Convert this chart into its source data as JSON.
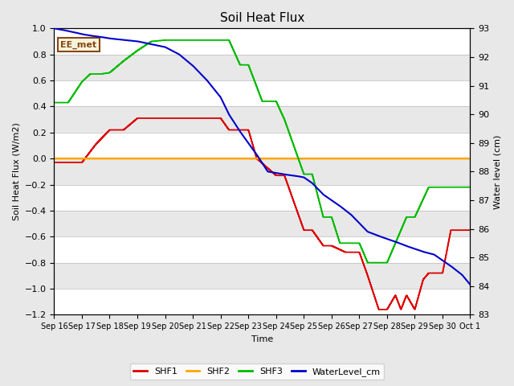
{
  "title": "Soil Heat Flux",
  "ylabel_left": "Soil Heat Flux (W/m2)",
  "ylabel_right": "Water level (cm)",
  "xlabel": "Time",
  "background_color": "#e8e8e8",
  "ylim_left": [
    -1.2,
    1.0
  ],
  "ylim_right": [
    83.0,
    93.0
  ],
  "yticks_left": [
    -1.2,
    -1.0,
    -0.8,
    -0.6,
    -0.4,
    -0.2,
    0.0,
    0.2,
    0.4,
    0.6,
    0.8,
    1.0
  ],
  "yticks_right": [
    83.0,
    84.0,
    85.0,
    86.0,
    87.0,
    88.0,
    89.0,
    90.0,
    91.0,
    92.0,
    93.0
  ],
  "xtick_labels": [
    "Sep 16",
    "Sep 17",
    "Sep 18",
    "Sep 19",
    "Sep 20",
    "Sep 21",
    "Sep 22",
    "Sep 23",
    "Sep 24",
    "Sep 25",
    "Sep 26",
    "Sep 27",
    "Sep 28",
    "Sep 29",
    "Sep 30",
    "Oct 1"
  ],
  "annotation_text": "EE_met",
  "annotation_color": "#8B4513",
  "annotation_bg": "#f5f5dc",
  "colors": {
    "SHF1": "#dd0000",
    "SHF2": "#ffa500",
    "SHF3": "#00bb00",
    "WaterLevel": "#0000cc"
  },
  "shf1_xp": [
    0,
    1,
    1.5,
    2,
    2.5,
    3,
    4,
    5,
    6,
    6.3,
    6.7,
    7,
    7.3,
    8,
    8.3,
    9,
    9.3,
    9.7,
    10,
    10.5,
    11,
    11.3,
    11.7,
    12,
    12.3,
    12.5,
    12.7,
    13,
    13.3,
    13.5,
    14,
    14.3,
    15
  ],
  "shf1_yp": [
    -0.03,
    -0.03,
    0.11,
    0.22,
    0.22,
    0.31,
    0.31,
    0.31,
    0.31,
    0.22,
    0.22,
    0.22,
    0.0,
    -0.13,
    -0.13,
    -0.55,
    -0.55,
    -0.67,
    -0.67,
    -0.72,
    -0.72,
    -0.9,
    -1.16,
    -1.16,
    -1.05,
    -1.16,
    -1.05,
    -1.16,
    -0.93,
    -0.88,
    -0.88,
    -0.55,
    -0.55
  ],
  "shf3_xp": [
    0,
    0.5,
    1,
    1.3,
    1.7,
    2,
    2.5,
    3,
    3.5,
    4,
    4.5,
    5,
    5.5,
    6,
    6.3,
    6.7,
    7,
    7.5,
    8,
    8.3,
    9,
    9.3,
    9.7,
    10,
    10.3,
    11,
    11.3,
    12,
    12.3,
    12.7,
    13,
    13.5,
    14,
    14.5,
    15
  ],
  "shf3_yp": [
    0.43,
    0.43,
    0.59,
    0.65,
    0.65,
    0.66,
    0.75,
    0.83,
    0.9,
    0.91,
    0.91,
    0.91,
    0.91,
    0.91,
    0.91,
    0.72,
    0.72,
    0.44,
    0.44,
    0.3,
    -0.12,
    -0.12,
    -0.45,
    -0.45,
    -0.65,
    -0.65,
    -0.8,
    -0.8,
    -0.65,
    -0.45,
    -0.45,
    -0.22,
    -0.22,
    -0.22,
    -0.22
  ],
  "water_xp": [
    0,
    0.3,
    0.7,
    1,
    1.3,
    1.7,
    2,
    2.5,
    3,
    3.5,
    4,
    4.5,
    5,
    5.5,
    6,
    6.3,
    6.7,
    7,
    7.3,
    7.5,
    7.7,
    8,
    8.3,
    8.7,
    9,
    9.3,
    9.5,
    9.7,
    10,
    10.3,
    10.7,
    11,
    11.3,
    11.7,
    12,
    12.3,
    12.7,
    13,
    13.3,
    13.7,
    14,
    14.3,
    14.7,
    15
  ],
  "water_yp": [
    93.0,
    92.95,
    92.87,
    92.8,
    92.75,
    92.7,
    92.65,
    92.6,
    92.55,
    92.45,
    92.35,
    92.1,
    91.7,
    91.2,
    90.6,
    90.0,
    89.4,
    89.0,
    88.6,
    88.3,
    88.0,
    87.95,
    87.9,
    87.85,
    87.8,
    87.6,
    87.4,
    87.2,
    87.0,
    86.8,
    86.5,
    86.2,
    85.9,
    85.75,
    85.65,
    85.55,
    85.4,
    85.3,
    85.2,
    85.1,
    84.9,
    84.7,
    84.4,
    84.05
  ]
}
